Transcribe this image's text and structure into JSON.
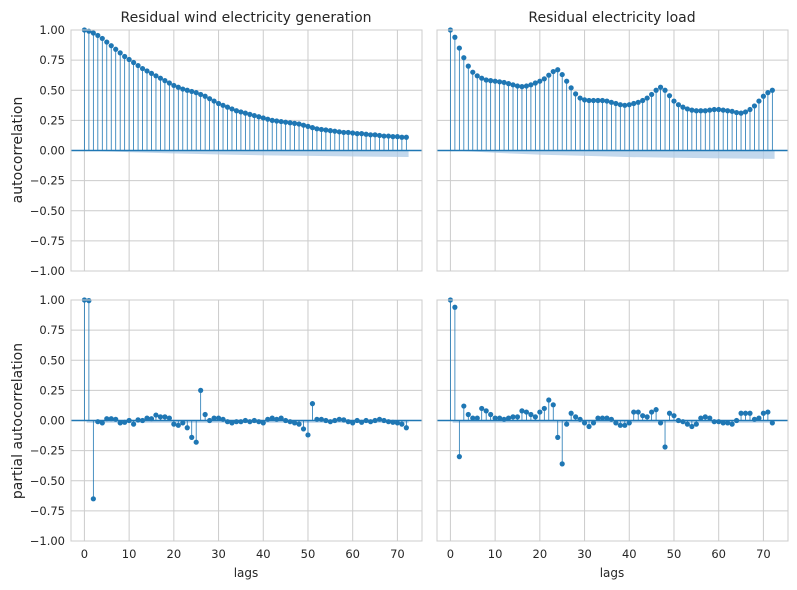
{
  "chart_data": [
    {
      "type": "stem",
      "panel": "top-left",
      "title": "Residual wind electricity generation",
      "ylabel": "autocorrelation",
      "xlabel": "",
      "xlim": [
        -3,
        75.5
      ],
      "ylim": [
        -1.0,
        1.0
      ],
      "xticks": [
        0,
        10,
        20,
        30,
        40,
        50,
        60,
        70
      ],
      "xtick_labels_visible": false,
      "yticks": [
        -1.0,
        -0.75,
        -0.5,
        -0.25,
        0.0,
        0.25,
        0.5,
        0.75,
        1.0
      ],
      "ytick_labels": [
        "−1.00",
        "−0.75",
        "−0.50",
        "−0.25",
        "0.00",
        "0.25",
        "0.50",
        "0.75",
        "1.00"
      ],
      "ytick_labels_visible": true,
      "grid": true,
      "conf_band_upper": [
        0.0,
        0.015,
        0.025,
        0.033,
        0.04,
        0.045,
        0.05,
        0.054
      ],
      "conf_band_lower_x": [
        0,
        10,
        20,
        30,
        40,
        50,
        60,
        72
      ],
      "x": [
        0,
        1,
        2,
        3,
        4,
        5,
        6,
        7,
        8,
        9,
        10,
        11,
        12,
        13,
        14,
        15,
        16,
        17,
        18,
        19,
        20,
        21,
        22,
        23,
        24,
        25,
        26,
        27,
        28,
        29,
        30,
        31,
        32,
        33,
        34,
        35,
        36,
        37,
        38,
        39,
        40,
        41,
        42,
        43,
        44,
        45,
        46,
        47,
        48,
        49,
        50,
        51,
        52,
        53,
        54,
        55,
        56,
        57,
        58,
        59,
        60,
        61,
        62,
        63,
        64,
        65,
        66,
        67,
        68,
        69,
        70,
        71,
        72
      ],
      "values": [
        1.0,
        0.99,
        0.975,
        0.955,
        0.93,
        0.9,
        0.87,
        0.84,
        0.81,
        0.78,
        0.755,
        0.73,
        0.705,
        0.68,
        0.66,
        0.64,
        0.62,
        0.6,
        0.58,
        0.56,
        0.54,
        0.525,
        0.51,
        0.5,
        0.49,
        0.48,
        0.465,
        0.45,
        0.43,
        0.41,
        0.39,
        0.375,
        0.36,
        0.345,
        0.33,
        0.32,
        0.31,
        0.3,
        0.29,
        0.28,
        0.27,
        0.26,
        0.25,
        0.245,
        0.24,
        0.235,
        0.23,
        0.225,
        0.22,
        0.21,
        0.2,
        0.19,
        0.18,
        0.175,
        0.17,
        0.165,
        0.16,
        0.155,
        0.15,
        0.15,
        0.145,
        0.14,
        0.14,
        0.135,
        0.13,
        0.13,
        0.125,
        0.12,
        0.12,
        0.115,
        0.115,
        0.11,
        0.11
      ]
    },
    {
      "type": "stem",
      "panel": "top-right",
      "title": "Residual electricity load",
      "ylabel": "",
      "xlabel": "",
      "xlim": [
        -3,
        75.5
      ],
      "ylim": [
        -1.0,
        1.0
      ],
      "xticks": [
        0,
        10,
        20,
        30,
        40,
        50,
        60,
        70
      ],
      "xtick_labels_visible": false,
      "yticks": [
        -1.0,
        -0.75,
        -0.5,
        -0.25,
        0.0,
        0.25,
        0.5,
        0.75,
        1.0
      ],
      "ytick_labels_visible": false,
      "grid": true,
      "conf_band_upper": [
        0.0,
        0.02,
        0.035,
        0.045,
        0.055,
        0.06,
        0.065,
        0.07
      ],
      "conf_band_lower_x": [
        0,
        10,
        20,
        30,
        40,
        50,
        60,
        72
      ],
      "x": [
        0,
        1,
        2,
        3,
        4,
        5,
        6,
        7,
        8,
        9,
        10,
        11,
        12,
        13,
        14,
        15,
        16,
        17,
        18,
        19,
        20,
        21,
        22,
        23,
        24,
        25,
        26,
        27,
        28,
        29,
        30,
        31,
        32,
        33,
        34,
        35,
        36,
        37,
        38,
        39,
        40,
        41,
        42,
        43,
        44,
        45,
        46,
        47,
        48,
        49,
        50,
        51,
        52,
        53,
        54,
        55,
        56,
        57,
        58,
        59,
        60,
        61,
        62,
        63,
        64,
        65,
        66,
        67,
        68,
        69,
        70,
        71,
        72
      ],
      "values": [
        1.0,
        0.94,
        0.85,
        0.77,
        0.7,
        0.65,
        0.62,
        0.6,
        0.585,
        0.58,
        0.575,
        0.57,
        0.565,
        0.555,
        0.545,
        0.535,
        0.53,
        0.535,
        0.545,
        0.56,
        0.575,
        0.595,
        0.625,
        0.655,
        0.67,
        0.63,
        0.575,
        0.52,
        0.47,
        0.435,
        0.42,
        0.415,
        0.415,
        0.415,
        0.415,
        0.41,
        0.4,
        0.39,
        0.38,
        0.375,
        0.38,
        0.39,
        0.4,
        0.415,
        0.435,
        0.465,
        0.5,
        0.525,
        0.5,
        0.455,
        0.41,
        0.38,
        0.36,
        0.345,
        0.335,
        0.33,
        0.33,
        0.33,
        0.335,
        0.34,
        0.34,
        0.335,
        0.33,
        0.325,
        0.315,
        0.31,
        0.32,
        0.34,
        0.37,
        0.41,
        0.45,
        0.48,
        0.5
      ]
    },
    {
      "type": "stem",
      "panel": "bottom-left",
      "title": "",
      "ylabel": "partial autocorrelation",
      "xlabel": "lags",
      "xlim": [
        -3,
        75.5
      ],
      "ylim": [
        -1.0,
        1.0
      ],
      "xticks": [
        0,
        10,
        20,
        30,
        40,
        50,
        60,
        70
      ],
      "xtick_labels": [
        "0",
        "10",
        "20",
        "30",
        "40",
        "50",
        "60",
        "70"
      ],
      "xtick_labels_visible": true,
      "yticks": [
        -1.0,
        -0.75,
        -0.5,
        -0.25,
        0.0,
        0.25,
        0.5,
        0.75,
        1.0
      ],
      "ytick_labels": [
        "−1.00",
        "−0.75",
        "−0.50",
        "−0.25",
        "0.00",
        "0.25",
        "0.50",
        "0.75",
        "1.00"
      ],
      "ytick_labels_visible": true,
      "grid": true,
      "conf_band_upper": [
        0.02,
        0.02,
        0.02,
        0.02,
        0.02,
        0.02,
        0.02,
        0.02
      ],
      "conf_band_lower_x": [
        0,
        10,
        20,
        30,
        40,
        50,
        60,
        72
      ],
      "x": [
        0,
        1,
        2,
        3,
        4,
        5,
        6,
        7,
        8,
        9,
        10,
        11,
        12,
        13,
        14,
        15,
        16,
        17,
        18,
        19,
        20,
        21,
        22,
        23,
        24,
        25,
        26,
        27,
        28,
        29,
        30,
        31,
        32,
        33,
        34,
        35,
        36,
        37,
        38,
        39,
        40,
        41,
        42,
        43,
        44,
        45,
        46,
        47,
        48,
        49,
        50,
        51,
        52,
        53,
        54,
        55,
        56,
        57,
        58,
        59,
        60,
        61,
        62,
        63,
        64,
        65,
        66,
        67,
        68,
        69,
        70,
        71,
        72
      ],
      "values": [
        1.0,
        0.995,
        -0.65,
        -0.01,
        -0.02,
        0.015,
        0.015,
        0.01,
        -0.02,
        -0.015,
        0.0,
        -0.03,
        0.005,
        0.0,
        0.02,
        0.015,
        0.045,
        0.03,
        0.03,
        0.02,
        -0.03,
        -0.04,
        -0.02,
        -0.06,
        -0.14,
        -0.18,
        0.25,
        0.05,
        0.0,
        0.02,
        0.02,
        0.01,
        -0.01,
        -0.02,
        -0.01,
        -0.01,
        0.0,
        -0.01,
        0.0,
        -0.01,
        -0.02,
        0.01,
        0.02,
        0.01,
        0.02,
        0.0,
        -0.01,
        -0.02,
        -0.03,
        -0.07,
        -0.12,
        0.14,
        0.01,
        0.01,
        0.0,
        -0.01,
        0.0,
        0.01,
        0.005,
        -0.01,
        -0.02,
        0.0,
        -0.015,
        0.0,
        -0.01,
        0.0,
        0.01,
        0.0,
        -0.01,
        -0.015,
        -0.02,
        -0.03,
        -0.06
      ]
    },
    {
      "type": "stem",
      "panel": "bottom-right",
      "title": "",
      "ylabel": "",
      "xlabel": "lags",
      "xlim": [
        -3,
        75.5
      ],
      "ylim": [
        -1.0,
        1.0
      ],
      "xticks": [
        0,
        10,
        20,
        30,
        40,
        50,
        60,
        70
      ],
      "xtick_labels": [
        "0",
        "10",
        "20",
        "30",
        "40",
        "50",
        "60",
        "70"
      ],
      "xtick_labels_visible": true,
      "yticks": [
        -1.0,
        -0.75,
        -0.5,
        -0.25,
        0.0,
        0.25,
        0.5,
        0.75,
        1.0
      ],
      "ytick_labels_visible": false,
      "grid": true,
      "conf_band_upper": [
        0.02,
        0.02,
        0.02,
        0.02,
        0.02,
        0.02,
        0.02,
        0.02
      ],
      "conf_band_lower_x": [
        0,
        10,
        20,
        30,
        40,
        50,
        60,
        72
      ],
      "x": [
        0,
        1,
        2,
        3,
        4,
        5,
        6,
        7,
        8,
        9,
        10,
        11,
        12,
        13,
        14,
        15,
        16,
        17,
        18,
        19,
        20,
        21,
        22,
        23,
        24,
        25,
        26,
        27,
        28,
        29,
        30,
        31,
        32,
        33,
        34,
        35,
        36,
        37,
        38,
        39,
        40,
        41,
        42,
        43,
        44,
        45,
        46,
        47,
        48,
        49,
        50,
        51,
        52,
        53,
        54,
        55,
        56,
        57,
        58,
        59,
        60,
        61,
        62,
        63,
        64,
        65,
        66,
        67,
        68,
        69,
        70,
        71,
        72
      ],
      "values": [
        1.0,
        0.94,
        -0.3,
        0.12,
        0.05,
        0.02,
        0.02,
        0.1,
        0.08,
        0.05,
        0.02,
        0.02,
        0.01,
        0.02,
        0.03,
        0.03,
        0.08,
        0.07,
        0.05,
        0.03,
        0.07,
        0.1,
        0.17,
        0.13,
        -0.14,
        -0.36,
        -0.03,
        0.06,
        0.03,
        0.01,
        -0.02,
        -0.05,
        -0.02,
        0.02,
        0.02,
        0.02,
        0.01,
        -0.02,
        -0.04,
        -0.04,
        -0.02,
        0.07,
        0.07,
        0.04,
        0.03,
        0.07,
        0.09,
        -0.02,
        -0.22,
        0.06,
        0.04,
        0.0,
        -0.01,
        -0.03,
        -0.05,
        -0.03,
        0.02,
        0.03,
        0.02,
        -0.01,
        -0.01,
        -0.02,
        -0.02,
        -0.03,
        0.0,
        0.06,
        0.06,
        0.06,
        0.01,
        0.02,
        0.06,
        0.07,
        -0.02
      ]
    }
  ],
  "colors": {
    "stem": "#1f77b4",
    "band": "#aecbe7",
    "grid": "#cccccc",
    "spine": "#cccccc",
    "background": "#ffffff"
  }
}
